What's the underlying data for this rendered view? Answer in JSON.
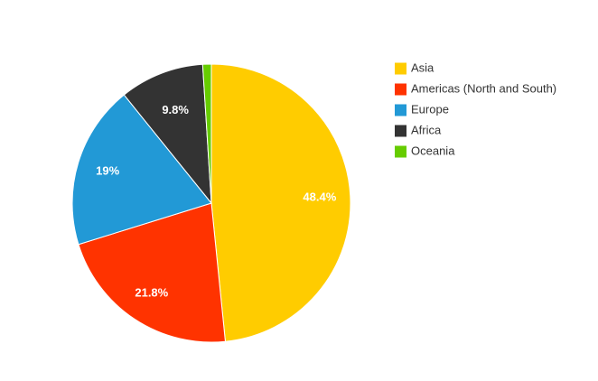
{
  "chart_data": {
    "type": "pie",
    "categories": [
      "Asia",
      "Americas (North and South)",
      "Europe",
      "Africa",
      "Oceania"
    ],
    "values": [
      48.4,
      21.8,
      19,
      9.8,
      1
    ],
    "value_labels": [
      "48.4%",
      "21.8%",
      "19%",
      "9.8%",
      null
    ],
    "colors": [
      "#ffcc00",
      "#ff3300",
      "#2299d6",
      "#333333",
      "#66cc00"
    ],
    "legend": "right"
  }
}
